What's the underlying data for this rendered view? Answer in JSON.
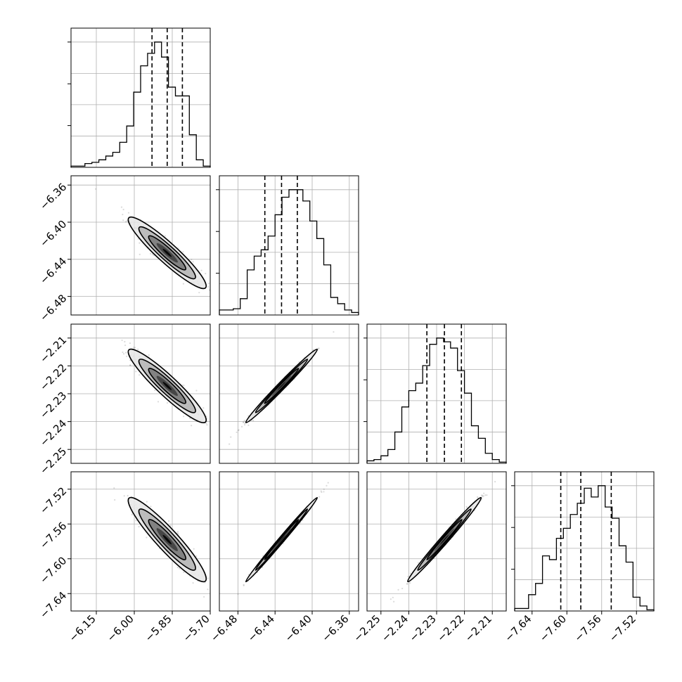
{
  "colors": {
    "background": "#ffffff",
    "grid": "#b0b0b0",
    "ink": "#000000",
    "scatter": "#6e6e6e",
    "density_levels": [
      "#e6e6e6",
      "#b4b4b4",
      "#787878",
      "#3c3c3c",
      "#000000"
    ]
  },
  "chart_data": {
    "type": "corner",
    "grid": true,
    "parameters": [
      {
        "range": [
          -6.25,
          -5.7
        ],
        "ticks": [
          -6.15,
          -6.0,
          -5.85,
          -5.7
        ],
        "tick_labels": [
          "−6.15",
          "−6.00",
          "−5.85",
          "−5.70"
        ],
        "quantiles": [
          -5.93,
          -5.87,
          -5.81
        ],
        "mean": -5.87,
        "sd": 0.07,
        "hist_counts": [
          0.01,
          0.01,
          0.03,
          0.04,
          0.06,
          0.09,
          0.12,
          0.2,
          0.33,
          0.6,
          0.81,
          0.91,
          1.0,
          0.88,
          0.64,
          0.57,
          0.57,
          0.26,
          0.06,
          0.01
        ]
      },
      {
        "range": [
          -6.5,
          -6.35
        ],
        "ticks": [
          -6.48,
          -6.44,
          -6.4,
          -6.36
        ],
        "tick_labels": [
          "−6.48",
          "−6.44",
          "−6.40",
          "−6.36"
        ],
        "quantiles": [
          -6.451,
          -6.433,
          -6.416
        ],
        "mean": -6.433,
        "sd": 0.0175,
        "hist_counts": [
          0.04,
          0.04,
          0.05,
          0.13,
          0.36,
          0.47,
          0.52,
          0.63,
          0.8,
          0.94,
          1.0,
          1.0,
          0.91,
          0.75,
          0.61,
          0.4,
          0.14,
          0.09,
          0.04,
          0.02
        ]
      },
      {
        "range": [
          -2.255,
          -2.205
        ],
        "ticks": [
          -2.25,
          -2.24,
          -2.23,
          -2.22,
          -2.21
        ],
        "tick_labels": [
          "−2.25",
          "−2.24",
          "−2.23",
          "−2.22",
          "−2.21"
        ],
        "quantiles": [
          -2.2335,
          -2.2272,
          -2.2211
        ],
        "mean": -2.2272,
        "sd": 0.006,
        "hist_counts": [
          0.02,
          0.03,
          0.06,
          0.11,
          0.25,
          0.45,
          0.58,
          0.64,
          0.78,
          0.95,
          1.0,
          0.97,
          0.92,
          0.74,
          0.56,
          0.3,
          0.2,
          0.08,
          0.03,
          0.01
        ]
      },
      {
        "range": [
          -7.66,
          -7.5
        ],
        "ticks": [
          -7.64,
          -7.6,
          -7.56,
          -7.52
        ],
        "tick_labels": [
          "−7.64",
          "−7.60",
          "−7.56",
          "−7.52"
        ],
        "quantiles": [
          -7.607,
          -7.584,
          -7.549
        ],
        "mean": -7.578,
        "sd": 0.022,
        "hist_counts": [
          0.02,
          0.02,
          0.13,
          0.22,
          0.44,
          0.41,
          0.58,
          0.66,
          0.77,
          0.86,
          0.98,
          0.91,
          1.0,
          0.83,
          0.74,
          0.52,
          0.39,
          0.11,
          0.04,
          0.01
        ]
      }
    ],
    "correlations": [
      [
        1,
        -0.93,
        -0.93,
        -0.93
      ],
      [
        -0.93,
        1,
        0.99,
        0.995
      ],
      [
        -0.93,
        0.99,
        1,
        0.99
      ],
      [
        -0.93,
        0.995,
        0.99,
        1
      ]
    ]
  }
}
